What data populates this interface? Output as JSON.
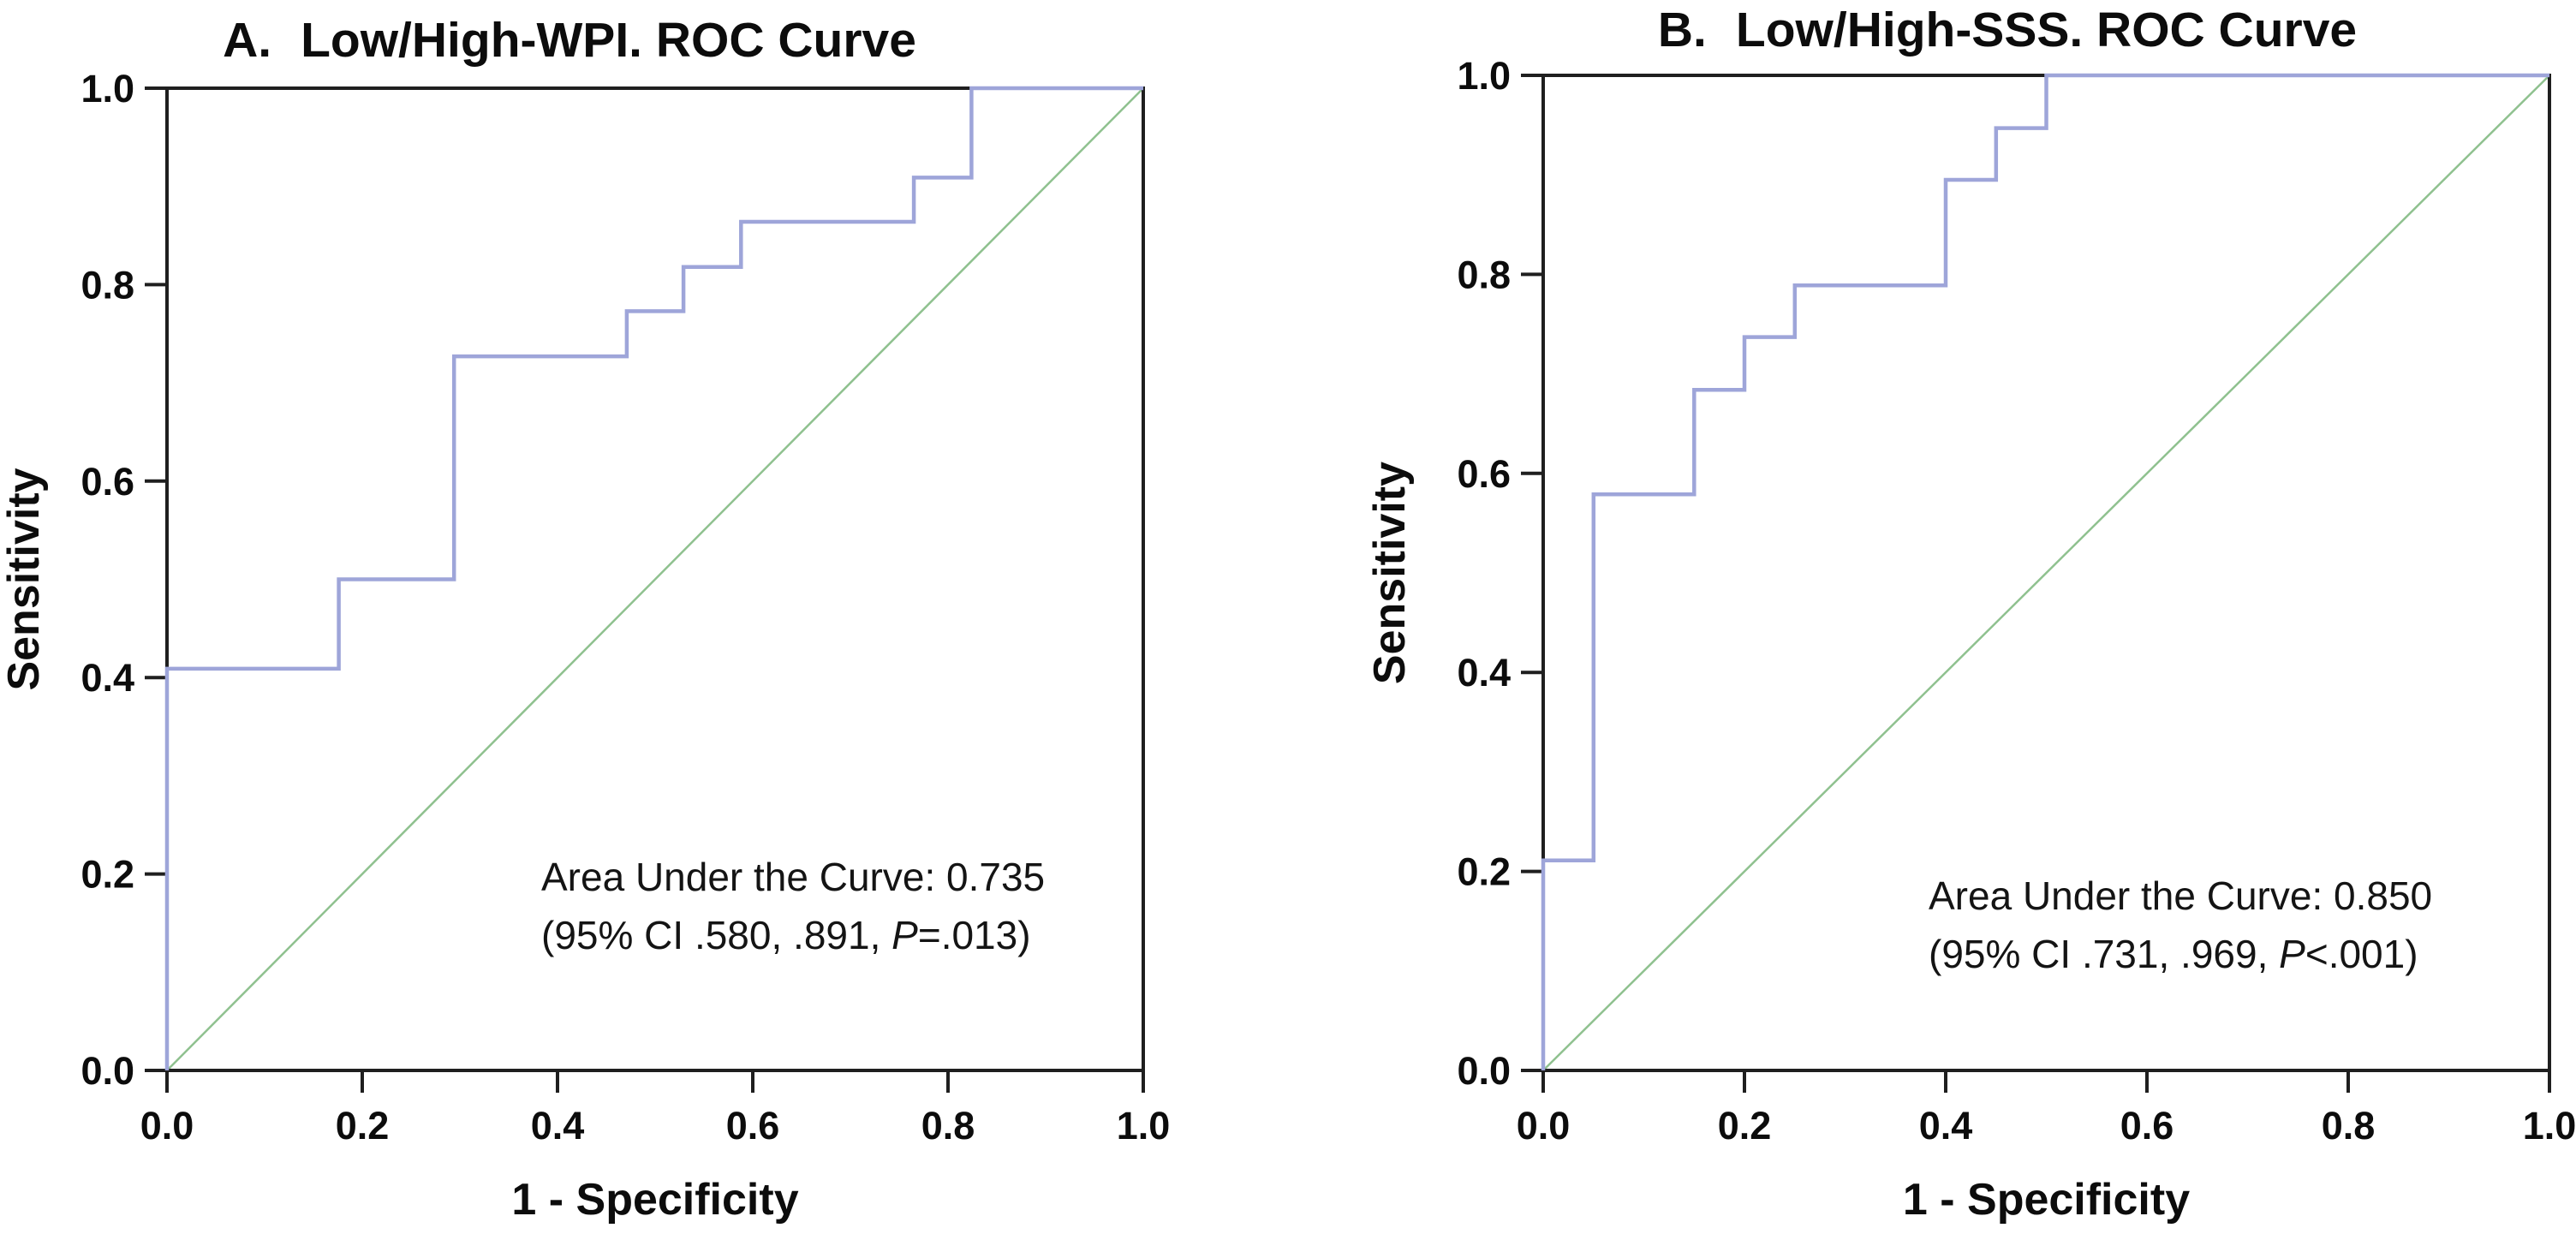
{
  "figure": {
    "panels": [
      {
        "letter": "A.",
        "title": "Low/High-WPI. ROC Curve",
        "xlabel": "1 - Specificity",
        "ylabel": "Sensitivity",
        "annotation": {
          "line1": "Area Under the Curve: 0.735",
          "line2_pre": "(95% CI .580, .891, ",
          "p_symbol": "P",
          "line2_post": "=.013)"
        }
      },
      {
        "letter": "B.",
        "title": "Low/High-SSS. ROC Curve",
        "xlabel": "1 - Specificity",
        "ylabel": "Sensitivity",
        "annotation": {
          "line1": "Area Under the Curve: 0.850",
          "line2_pre": "(95% CI .731, .969, ",
          "p_symbol": "P",
          "line2_post": "<.001)"
        }
      }
    ]
  },
  "chart_data": [
    {
      "type": "line",
      "subtype": "roc-step-curve",
      "title": "A. Low/High-WPI. ROC Curve",
      "xlabel": "1 - Specificity",
      "ylabel": "Sensitivity",
      "xlim": [
        0,
        1
      ],
      "ylim": [
        0,
        1
      ],
      "grid": false,
      "x_ticks": [
        "0.0",
        "0.2",
        "0.4",
        "0.6",
        "0.8",
        "1.0"
      ],
      "y_ticks": [
        "0.0",
        "0.2",
        "0.4",
        "0.6",
        "0.8",
        "1.0"
      ],
      "frame_color": "#1f1f1f",
      "auc": 0.735,
      "ci_lower": 0.58,
      "ci_upper": 0.891,
      "p_value": "=.013",
      "annotations": [
        "Area Under the Curve: 0.735",
        "(95% CI .580, .891, P=.013)"
      ],
      "series": [
        {
          "name": "ROC curve",
          "color": "#9ea5d9",
          "points": [
            [
              0,
              0
            ],
            [
              0,
              0.409
            ],
            [
              0.176,
              0.409
            ],
            [
              0.176,
              0.5
            ],
            [
              0.294,
              0.5
            ],
            [
              0.294,
              0.727
            ],
            [
              0.471,
              0.727
            ],
            [
              0.471,
              0.773
            ],
            [
              0.529,
              0.773
            ],
            [
              0.529,
              0.818
            ],
            [
              0.588,
              0.818
            ],
            [
              0.588,
              0.864
            ],
            [
              0.765,
              0.864
            ],
            [
              0.765,
              0.909
            ],
            [
              0.824,
              0.909
            ],
            [
              0.824,
              1
            ],
            [
              1,
              1
            ]
          ]
        },
        {
          "name": "Reference line",
          "color": "#8fc18f",
          "points": [
            [
              0,
              0
            ],
            [
              1,
              1
            ]
          ]
        }
      ]
    },
    {
      "type": "line",
      "subtype": "roc-step-curve",
      "title": "B. Low/High-SSS. ROC Curve",
      "xlabel": "1 - Specificity",
      "ylabel": "Sensitivity",
      "xlim": [
        0,
        1
      ],
      "ylim": [
        0,
        1
      ],
      "grid": false,
      "x_ticks": [
        "0.0",
        "0.2",
        "0.4",
        "0.6",
        "0.8",
        "1.0"
      ],
      "y_ticks": [
        "0.0",
        "0.2",
        "0.4",
        "0.6",
        "0.8",
        "1.0"
      ],
      "frame_color": "#1f1f1f",
      "auc": 0.85,
      "ci_lower": 0.731,
      "ci_upper": 0.969,
      "p_value": "<.001",
      "annotations": [
        "Area Under the Curve: 0.850",
        "(95% CI .731, .969, P<.001)"
      ],
      "series": [
        {
          "name": "ROC curve",
          "color": "#9ea5d9",
          "points": [
            [
              0,
              0
            ],
            [
              0,
              0.211
            ],
            [
              0.05,
              0.211
            ],
            [
              0.05,
              0.579
            ],
            [
              0.15,
              0.579
            ],
            [
              0.15,
              0.684
            ],
            [
              0.2,
              0.684
            ],
            [
              0.2,
              0.737
            ],
            [
              0.25,
              0.737
            ],
            [
              0.25,
              0.789
            ],
            [
              0.4,
              0.789
            ],
            [
              0.4,
              0.895
            ],
            [
              0.45,
              0.895
            ],
            [
              0.45,
              0.947
            ],
            [
              0.5,
              0.947
            ],
            [
              0.5,
              1
            ],
            [
              1,
              1
            ]
          ]
        },
        {
          "name": "Reference line",
          "color": "#8fc18f",
          "points": [
            [
              0,
              0
            ],
            [
              1,
              1
            ]
          ]
        }
      ]
    }
  ]
}
